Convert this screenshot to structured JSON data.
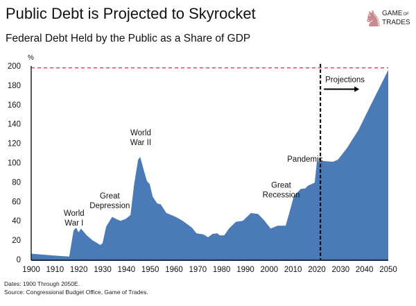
{
  "chart_data": {
    "type": "area",
    "title": "Public Debt is Projected to Skyrocket",
    "subtitle": "Federal Debt Held by the Public as a Share of GDP",
    "ylabel": "%",
    "xlim": [
      1900,
      2050
    ],
    "ylim": [
      0,
      200
    ],
    "xticks": [
      1900,
      1910,
      1920,
      1930,
      1940,
      1950,
      1960,
      1970,
      1980,
      1990,
      2000,
      2010,
      2020,
      2030,
      2040,
      2050
    ],
    "yticks": [
      0,
      20,
      40,
      60,
      80,
      100,
      120,
      140,
      160,
      180,
      200
    ],
    "grid": false,
    "colors": {
      "area": "#4a7bb7",
      "reference_line": "#d9534f",
      "projection_line": "#000000"
    },
    "reference_line": {
      "y": 198,
      "style": "dashed"
    },
    "projection_start": 2021.5,
    "projection_label": "Projections",
    "series": [
      {
        "x": [
          1900,
          1905,
          1910,
          1916,
          1917.8,
          1918.9,
          1919.9,
          1920.9,
          1923.3,
          1925.7,
          1929.1,
          1930,
          1931.5,
          1934,
          1936.4,
          1937.5,
          1939.8,
          1941.7,
          1943.2,
          1944.9,
          1945.8,
          1947.1,
          1948.6,
          1949.8,
          1951,
          1952.9,
          1954.4,
          1956.8,
          1958.8,
          1960.7,
          1963.6,
          1967.5,
          1969.4,
          1972.3,
          1974.3,
          1976.2,
          1978.2,
          1979.2,
          1981.1,
          1983.1,
          1986,
          1988.9,
          1992.3,
          1995.3,
          1997.7,
          2000.6,
          2003.5,
          2006.9,
          2008.4,
          2010.3,
          2013.2,
          2015.2,
          2016.1,
          2019.1,
          2020,
          2021.5,
          2026.8,
          2028.8,
          2032.6,
          2037.5,
          2042.3,
          2047.2,
          2050
        ],
        "values": [
          6,
          5,
          4,
          3,
          30,
          33,
          28,
          32,
          25,
          20,
          15,
          17,
          34,
          44,
          41,
          40,
          42,
          46,
          77,
          103,
          106,
          94,
          81,
          78,
          65,
          58,
          57,
          48,
          46,
          44,
          40,
          33,
          27,
          26,
          23,
          26.5,
          27,
          25,
          25,
          32,
          39,
          40,
          48,
          47,
          41,
          32,
          35,
          35,
          48,
          65,
          73,
          73.5,
          76,
          79.5,
          101,
          102,
          101,
          103,
          115,
          134,
          158,
          182,
          196
        ]
      }
    ],
    "annotations": [
      {
        "text": [
          "World",
          "War I"
        ],
        "x": 1918,
        "y": 38
      },
      {
        "text": [
          "Great",
          "Depression"
        ],
        "x": 1933,
        "y": 56
      },
      {
        "text": [
          "World",
          "War II"
        ],
        "x": 1946,
        "y": 121
      },
      {
        "text": [
          "Great",
          "Recession"
        ],
        "x": 2005,
        "y": 67
      },
      {
        "text": [
          "Pandemic"
        ],
        "x": 2015,
        "y": 104
      }
    ],
    "notes": [
      "Dates: 1900 Through 2050E.",
      "Source: Congressional Budget Office, Game of Trades."
    ]
  },
  "logo": {
    "line1": "GAME",
    "line1_small": "OF",
    "line2": "TRADES"
  }
}
